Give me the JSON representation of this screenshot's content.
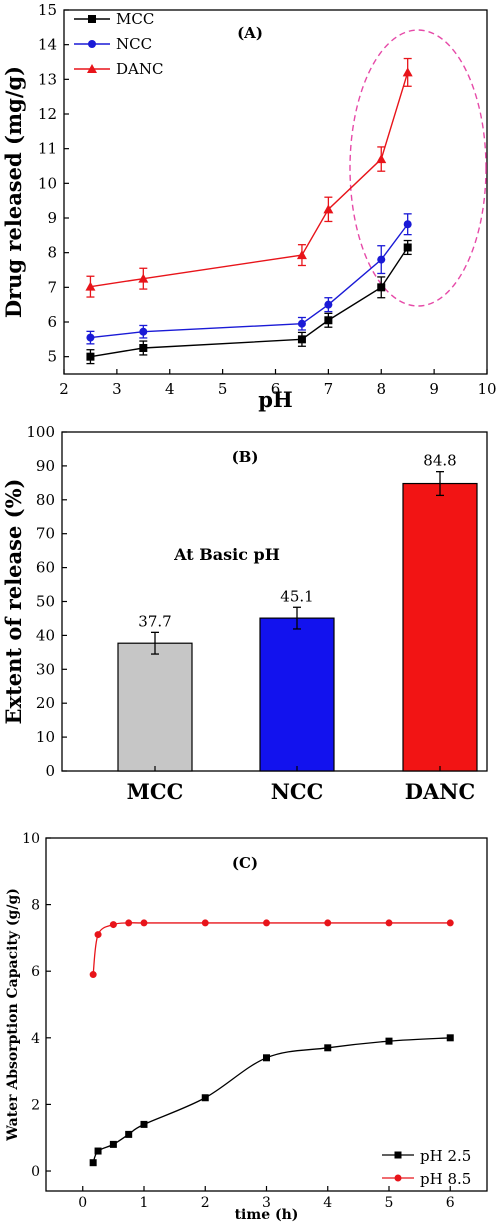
{
  "chart_data": [
    {
      "panel": "(A)",
      "type": "line",
      "xlabel": "pH",
      "ylabel": "Drug released (mg/g)",
      "xlim": [
        2,
        10
      ],
      "ylim": [
        4.5,
        15
      ],
      "xticks": [
        "2",
        "3",
        "4",
        "5",
        "6",
        "7",
        "8",
        "9",
        "10"
      ],
      "yticks": [
        "5",
        "6",
        "7",
        "8",
        "9",
        "10",
        "11",
        "12",
        "13",
        "14",
        "15"
      ],
      "x": [
        2.5,
        3.5,
        6.5,
        7,
        8,
        8.5
      ],
      "series": [
        {
          "name": "MCC",
          "color": "#000000",
          "marker": "square",
          "values": [
            5.0,
            5.25,
            5.5,
            6.05,
            7.0,
            8.15
          ],
          "errors": [
            0.2,
            0.2,
            0.2,
            0.2,
            0.3,
            0.2
          ]
        },
        {
          "name": "NCC",
          "color": "#1a1ad6",
          "marker": "circle",
          "values": [
            5.55,
            5.72,
            5.95,
            6.5,
            7.8,
            8.82
          ],
          "errors": [
            0.18,
            0.18,
            0.18,
            0.2,
            0.4,
            0.3
          ]
        },
        {
          "name": "DANC",
          "color": "#e8141a",
          "marker": "triangle",
          "values": [
            7.02,
            7.25,
            7.93,
            9.25,
            10.7,
            13.2
          ],
          "errors": [
            0.3,
            0.3,
            0.3,
            0.35,
            0.35,
            0.4
          ]
        }
      ],
      "legend": "top-left",
      "highlight": {
        "shape": "dashed-ellipse",
        "color": "#e64aa8"
      }
    },
    {
      "panel": "(B)",
      "type": "bar",
      "ylabel": "Extent of release (%)",
      "ylim": [
        0,
        100
      ],
      "yticks": [
        "0",
        "10",
        "20",
        "30",
        "40",
        "50",
        "60",
        "70",
        "80",
        "90",
        "100"
      ],
      "categories": [
        "MCC",
        "NCC",
        "DANC"
      ],
      "values": [
        37.7,
        45.1,
        84.8
      ],
      "labels": [
        "37.7",
        "45.1",
        "84.8"
      ],
      "errors": [
        3.2,
        3.2,
        3.5
      ],
      "colors": [
        "#c6c6c6",
        "#1212ee",
        "#f21414"
      ],
      "annotation": "At Basic pH"
    },
    {
      "panel": "(C)",
      "type": "line",
      "xlabel": "time (h)",
      "ylabel": "Water Absorption Capacity (g/g)",
      "xlim": [
        -0.6,
        6.6
      ],
      "ylim": [
        -0.6,
        10
      ],
      "xticks": [
        "0",
        "1",
        "2",
        "3",
        "4",
        "5",
        "6"
      ],
      "yticks": [
        "0",
        "2",
        "4",
        "6",
        "8",
        "10"
      ],
      "series": [
        {
          "name": "pH 2.5",
          "color": "#000000",
          "marker": "square",
          "x": [
            0.17,
            0.25,
            0.5,
            0.75,
            1,
            2,
            3,
            4,
            5,
            6
          ],
          "values": [
            0.25,
            0.6,
            0.8,
            1.1,
            1.4,
            2.2,
            3.4,
            3.7,
            3.9,
            4.0
          ]
        },
        {
          "name": "pH 8.5",
          "color": "#e8141a",
          "marker": "circle",
          "x": [
            0.17,
            0.25,
            0.5,
            0.75,
            1,
            2,
            3,
            4,
            5,
            6
          ],
          "values": [
            5.9,
            7.1,
            7.4,
            7.45,
            7.45,
            7.45,
            7.45,
            7.45,
            7.45,
            7.45
          ]
        }
      ],
      "legend": "bottom-right"
    }
  ]
}
